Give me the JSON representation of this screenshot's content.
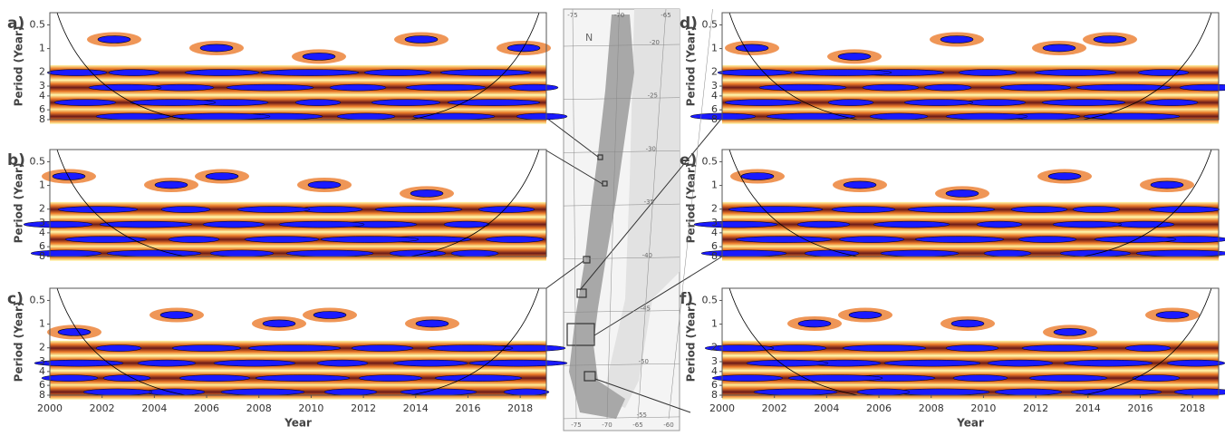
{
  "panels": [
    {
      "label": "a)",
      "ylabel": "Period (Year)",
      "log": true,
      "ylim": [
        0.35,
        8
      ],
      "yticks": [
        0.5,
        1,
        2,
        3,
        4,
        6,
        8
      ],
      "xlim": [
        2000,
        2019
      ]
    },
    {
      "label": "b)",
      "ylabel": "Period (Year)",
      "log": true,
      "ylim": [
        0.35,
        8
      ],
      "yticks": [
        0.5,
        1,
        2,
        3,
        4,
        6,
        8
      ],
      "xlim": [
        2000,
        2019
      ]
    },
    {
      "label": "c)",
      "ylabel": "Period (Year)",
      "log": true,
      "ylim": [
        0.35,
        8
      ],
      "yticks": [
        0.5,
        1,
        2,
        3,
        4,
        6,
        8
      ],
      "xlim": [
        2000,
        2019
      ],
      "xticks": [
        2000,
        2002,
        2004,
        2006,
        2008,
        2010,
        2012,
        2014,
        2016,
        2018
      ],
      "xlabel": "Year"
    },
    {
      "label": "d)",
      "ylabel": "Period (Year)",
      "log": true,
      "ylim": [
        0.35,
        8
      ],
      "yticks": [
        0.5,
        1,
        2,
        3,
        4,
        6,
        8
      ],
      "xlim": [
        2000,
        2019
      ]
    },
    {
      "label": "e)",
      "ylabel": "Period (Year)",
      "log": true,
      "ylim": [
        0.35,
        8
      ],
      "yticks": [
        0.5,
        1,
        2,
        3,
        4,
        6,
        8
      ],
      "xlim": [
        2000,
        2019
      ]
    },
    {
      "label": "f)",
      "ylabel": "Period (Year)",
      "log": true,
      "ylim": [
        0.35,
        8
      ],
      "yticks": [
        0.5,
        1,
        2,
        3,
        4,
        6,
        8
      ],
      "xlim": [
        2000,
        2019
      ],
      "xticks": [
        2000,
        2002,
        2004,
        2006,
        2008,
        2010,
        2012,
        2014,
        2016,
        2018
      ],
      "xlabel": "Year"
    }
  ],
  "map": {
    "north": "N",
    "lat_labels": [
      -20,
      -25,
      -30,
      -35,
      -40,
      -45,
      -50,
      -55
    ],
    "lon_top": [
      -75,
      -70,
      -65
    ],
    "lon_bottom": [
      -75,
      -70,
      -65,
      -60
    ]
  }
}
